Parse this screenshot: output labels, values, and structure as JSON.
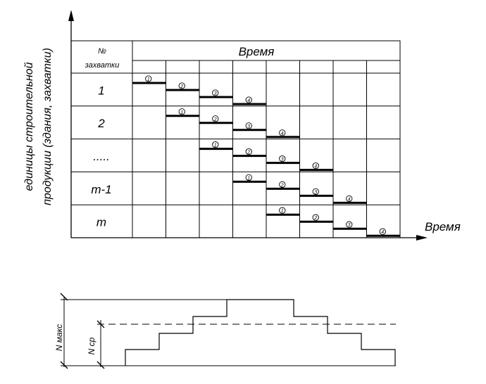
{
  "y_axis_label": {
    "line1": "единицы строительной",
    "line2": "продукции (здания, захватки)"
  },
  "x_axis_label": "Время",
  "table": {
    "col_header_line1": "№",
    "col_header_line2": "захватки",
    "time_header": "Время",
    "rows": [
      "1",
      "2",
      ".....",
      "m-1",
      "m"
    ]
  },
  "process_numbers": [
    "1",
    "2",
    "3",
    "4"
  ],
  "resource_chart": {
    "n_max_label": "N макс",
    "n_avg_label": "N ср"
  }
}
